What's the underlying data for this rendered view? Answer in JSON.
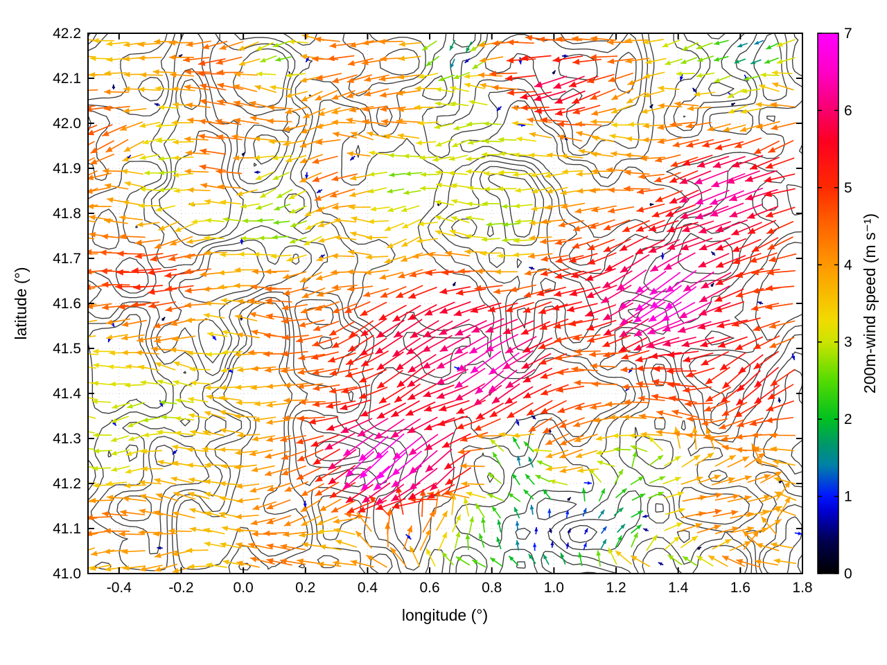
{
  "chart_data": {
    "type": "scatter",
    "subtype": "vector_field_quiver_with_terrain_contours",
    "title": "",
    "xlabel": "longitude (°)",
    "ylabel": "latitude (°)",
    "xlim": [
      -0.5,
      1.8
    ],
    "ylim": [
      41.0,
      42.2
    ],
    "xticks": [
      -0.4,
      -0.2,
      0.0,
      0.2,
      0.4,
      0.6,
      0.8,
      1.0,
      1.2,
      1.4,
      1.6,
      1.8
    ],
    "yticks": [
      41.0,
      41.1,
      41.2,
      41.3,
      41.4,
      41.5,
      41.6,
      41.7,
      41.8,
      41.9,
      42.0,
      42.1,
      42.2
    ],
    "grid": true,
    "colorbar": {
      "label": "200m-wind speed (m s⁻¹)",
      "min": 0,
      "max": 7,
      "ticks": [
        0,
        1,
        2,
        3,
        4,
        5,
        6,
        7
      ],
      "stops": [
        [
          0.0,
          "#000000"
        ],
        [
          0.06,
          "#00004f"
        ],
        [
          0.115,
          "#0000d0"
        ],
        [
          0.143,
          "#0014ff"
        ],
        [
          0.2,
          "#0080a8"
        ],
        [
          0.24,
          "#009868"
        ],
        [
          0.286,
          "#00c020"
        ],
        [
          0.36,
          "#58dc00"
        ],
        [
          0.429,
          "#cce400"
        ],
        [
          0.47,
          "#f2da00"
        ],
        [
          0.571,
          "#ff9800"
        ],
        [
          0.65,
          "#ff6000"
        ],
        [
          0.714,
          "#ff2a00"
        ],
        [
          0.8,
          "#fc0020"
        ],
        [
          0.857,
          "#f8006c"
        ],
        [
          0.93,
          "#ff00c8"
        ],
        [
          1.0,
          "#ff00ff"
        ]
      ]
    },
    "contours": {
      "color": "#3c3c3c",
      "levels": [
        0.34,
        0.43,
        0.52,
        0.61,
        0.7
      ],
      "seed": 7
    },
    "vector_field": {
      "grid_nx": 44,
      "grid_ny": 33,
      "seed": 3,
      "base_speed": 3.6,
      "speed_noise": 1.15,
      "base_direction_deg": 185,
      "high_speed_regions": [
        {
          "lon": 0.5,
          "lat": 41.28,
          "rx": 0.27,
          "ry": 0.14,
          "speed": 6.9,
          "dir_deg": 228
        },
        {
          "lon": 0.83,
          "lat": 41.5,
          "rx": 0.26,
          "ry": 0.15,
          "speed": 6.7,
          "dir_deg": 213
        },
        {
          "lon": 1.42,
          "lat": 41.63,
          "rx": 0.3,
          "ry": 0.18,
          "speed": 6.8,
          "dir_deg": 212
        },
        {
          "lon": 1.6,
          "lat": 41.86,
          "rx": 0.2,
          "ry": 0.12,
          "speed": 6.4,
          "dir_deg": 198
        },
        {
          "lon": 1.05,
          "lat": 42.1,
          "rx": 0.18,
          "ry": 0.09,
          "speed": 5.9,
          "dir_deg": 205
        },
        {
          "lon": -0.25,
          "lat": 41.66,
          "rx": 0.28,
          "ry": 0.11,
          "speed": 5.1,
          "dir_deg": 188
        },
        {
          "lon": 0.57,
          "lat": 41.55,
          "rx": 0.22,
          "ry": 0.13,
          "speed": 5.8,
          "dir_deg": 215
        },
        {
          "lon": 1.7,
          "lat": 41.45,
          "rx": 0.15,
          "ry": 0.12,
          "speed": 5.4,
          "dir_deg": 220
        }
      ],
      "low_speed_regions": [
        {
          "lon": 1.02,
          "lat": 41.08,
          "rx": 0.22,
          "ry": 0.09,
          "speed": 0.5,
          "dir_deg": 80
        },
        {
          "lon": 0.9,
          "lat": 41.24,
          "rx": 0.1,
          "ry": 0.06,
          "speed": 1.4,
          "dir_deg": 110
        },
        {
          "lon": 0.7,
          "lat": 42.16,
          "rx": 0.09,
          "ry": 0.05,
          "speed": 1.1,
          "dir_deg": 250
        },
        {
          "lon": 1.65,
          "lat": 42.17,
          "rx": 0.09,
          "ry": 0.05,
          "speed": 1.2,
          "dir_deg": 200
        }
      ],
      "direction_regions": [
        {
          "lon": 1.45,
          "lat": 41.15,
          "rx": 0.35,
          "ry": 0.15,
          "dir_deg": 15
        },
        {
          "lon": 0.6,
          "lat": 41.08,
          "rx": 0.22,
          "ry": 0.08,
          "dir_deg": 55
        }
      ]
    }
  }
}
